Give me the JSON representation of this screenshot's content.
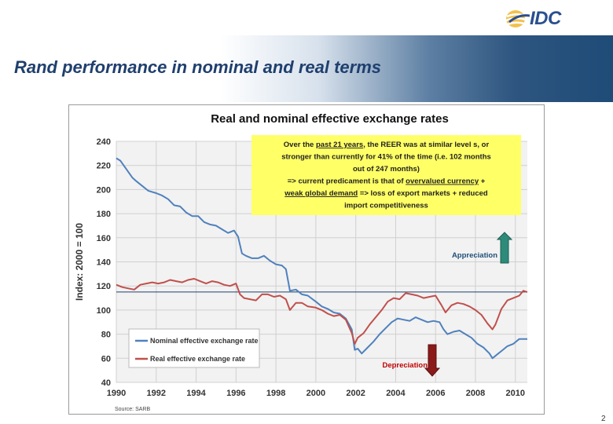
{
  "slide": {
    "title": "Rand performance in nominal and real terms",
    "page_number": "2",
    "logo_text": "IDC"
  },
  "chart_data": {
    "type": "line",
    "title": "Real and nominal effective exchange rates",
    "xlabel": "",
    "ylabel": "Index: 2000 = 100",
    "xlim": [
      1990,
      2010.6
    ],
    "ylim": [
      40,
      240
    ],
    "yticks": [
      40,
      60,
      80,
      100,
      120,
      140,
      160,
      180,
      200,
      220,
      240
    ],
    "xticks": [
      1990,
      1992,
      1994,
      1996,
      1998,
      2000,
      2002,
      2004,
      2006,
      2008,
      2010
    ],
    "grid": true,
    "reference_line": 115,
    "source": "Source: SARB",
    "legend_position": "bottom-left",
    "series": [
      {
        "name": "Nominal effective exchange rate",
        "color": "#4f81bd",
        "points": [
          [
            1990.0,
            226
          ],
          [
            1990.2,
            224
          ],
          [
            1990.5,
            217
          ],
          [
            1990.8,
            210
          ],
          [
            1991.0,
            207
          ],
          [
            1991.3,
            203
          ],
          [
            1991.6,
            199
          ],
          [
            1992.0,
            197
          ],
          [
            1992.3,
            195
          ],
          [
            1992.6,
            192
          ],
          [
            1992.9,
            187
          ],
          [
            1993.2,
            186
          ],
          [
            1993.5,
            181
          ],
          [
            1993.8,
            178
          ],
          [
            1994.1,
            178
          ],
          [
            1994.4,
            173
          ],
          [
            1994.7,
            171
          ],
          [
            1995.0,
            170
          ],
          [
            1995.3,
            167
          ],
          [
            1995.6,
            164
          ],
          [
            1995.9,
            166
          ],
          [
            1996.1,
            161
          ],
          [
            1996.3,
            147
          ],
          [
            1996.5,
            145
          ],
          [
            1996.8,
            143
          ],
          [
            1997.1,
            143
          ],
          [
            1997.4,
            145
          ],
          [
            1997.7,
            141
          ],
          [
            1998.0,
            138
          ],
          [
            1998.3,
            137
          ],
          [
            1998.5,
            134
          ],
          [
            1998.7,
            116
          ],
          [
            1999.0,
            117
          ],
          [
            1999.3,
            113
          ],
          [
            1999.6,
            112
          ],
          [
            2000.0,
            107
          ],
          [
            2000.3,
            103
          ],
          [
            2000.6,
            101
          ],
          [
            2000.9,
            98
          ],
          [
            2001.2,
            97
          ],
          [
            2001.5,
            93
          ],
          [
            2001.8,
            84
          ],
          [
            2001.95,
            67
          ],
          [
            2002.1,
            68
          ],
          [
            2002.3,
            64
          ],
          [
            2002.6,
            69
          ],
          [
            2002.9,
            74
          ],
          [
            2003.2,
            80
          ],
          [
            2003.5,
            85
          ],
          [
            2003.8,
            90
          ],
          [
            2004.1,
            93
          ],
          [
            2004.4,
            92
          ],
          [
            2004.7,
            91
          ],
          [
            2005.0,
            94
          ],
          [
            2005.3,
            92
          ],
          [
            2005.6,
            90
          ],
          [
            2005.9,
            91
          ],
          [
            2006.2,
            90
          ],
          [
            2006.4,
            84
          ],
          [
            2006.6,
            80
          ],
          [
            2006.9,
            82
          ],
          [
            2007.2,
            83
          ],
          [
            2007.5,
            80
          ],
          [
            2007.8,
            77
          ],
          [
            2008.1,
            72
          ],
          [
            2008.4,
            69
          ],
          [
            2008.7,
            64
          ],
          [
            2008.85,
            60
          ],
          [
            2009.0,
            62
          ],
          [
            2009.3,
            66
          ],
          [
            2009.6,
            70
          ],
          [
            2009.9,
            72
          ],
          [
            2010.2,
            76
          ],
          [
            2010.6,
            76
          ]
        ]
      },
      {
        "name": "Real effective exchange rate",
        "color": "#c0504d",
        "points": [
          [
            1990.0,
            121
          ],
          [
            1990.3,
            119
          ],
          [
            1990.6,
            118
          ],
          [
            1990.9,
            117
          ],
          [
            1991.2,
            121
          ],
          [
            1991.5,
            122
          ],
          [
            1991.8,
            123
          ],
          [
            1992.1,
            122
          ],
          [
            1992.4,
            123
          ],
          [
            1992.7,
            125
          ],
          [
            1993.0,
            124
          ],
          [
            1993.3,
            123
          ],
          [
            1993.6,
            125
          ],
          [
            1993.9,
            126
          ],
          [
            1994.2,
            124
          ],
          [
            1994.5,
            122
          ],
          [
            1994.8,
            124
          ],
          [
            1995.1,
            123
          ],
          [
            1995.4,
            121
          ],
          [
            1995.7,
            120
          ],
          [
            1996.0,
            122
          ],
          [
            1996.2,
            113
          ],
          [
            1996.4,
            110
          ],
          [
            1996.7,
            109
          ],
          [
            1997.0,
            108
          ],
          [
            1997.3,
            113
          ],
          [
            1997.6,
            113
          ],
          [
            1997.9,
            111
          ],
          [
            1998.2,
            112
          ],
          [
            1998.5,
            109
          ],
          [
            1998.7,
            100
          ],
          [
            1999.0,
            106
          ],
          [
            1999.3,
            106
          ],
          [
            1999.6,
            103
          ],
          [
            2000.0,
            102
          ],
          [
            2000.3,
            100
          ],
          [
            2000.6,
            97
          ],
          [
            2000.9,
            95
          ],
          [
            2001.2,
            96
          ],
          [
            2001.5,
            92
          ],
          [
            2001.8,
            81
          ],
          [
            2001.95,
            72
          ],
          [
            2002.1,
            77
          ],
          [
            2002.4,
            81
          ],
          [
            2002.7,
            88
          ],
          [
            2003.0,
            94
          ],
          [
            2003.3,
            100
          ],
          [
            2003.6,
            107
          ],
          [
            2003.9,
            110
          ],
          [
            2004.2,
            109
          ],
          [
            2004.5,
            114
          ],
          [
            2004.8,
            113
          ],
          [
            2005.1,
            112
          ],
          [
            2005.4,
            110
          ],
          [
            2005.7,
            111
          ],
          [
            2006.0,
            112
          ],
          [
            2006.3,
            104
          ],
          [
            2006.5,
            98
          ],
          [
            2006.8,
            104
          ],
          [
            2007.1,
            106
          ],
          [
            2007.4,
            105
          ],
          [
            2007.7,
            103
          ],
          [
            2008.0,
            100
          ],
          [
            2008.3,
            96
          ],
          [
            2008.6,
            89
          ],
          [
            2008.85,
            84
          ],
          [
            2009.0,
            88
          ],
          [
            2009.3,
            101
          ],
          [
            2009.6,
            108
          ],
          [
            2009.9,
            110
          ],
          [
            2010.2,
            112
          ],
          [
            2010.4,
            116
          ],
          [
            2010.6,
            115
          ]
        ]
      }
    ],
    "annotation": {
      "lines": [
        {
          "segments": [
            {
              "text": "Over the ",
              "u": false
            },
            {
              "text": "past  21 years",
              "u": true
            },
            {
              "text": ", the REER was at similar level s, or",
              "u": false
            }
          ]
        },
        {
          "segments": [
            {
              "text": "stronger than currently for 41% of the time (i.e. 102 months",
              "u": false
            }
          ]
        },
        {
          "segments": [
            {
              "text": "out of 247 months)",
              "u": false
            }
          ]
        },
        {
          "segments": [
            {
              "text": "=> current predicament  is that of ",
              "u": false
            },
            {
              "text": "overvalued currency",
              "u": true
            },
            {
              "text": " +",
              "u": false
            }
          ]
        },
        {
          "segments": [
            {
              "text": "weak global demand",
              "u": true
            },
            {
              "text": "  => loss of export markets + reduced",
              "u": false
            }
          ]
        },
        {
          "segments": [
            {
              "text": "import competitiveness",
              "u": false
            }
          ]
        }
      ],
      "background": "#ffff66"
    },
    "labels": {
      "appreciation": "Appreciation",
      "depreciation": "Depreciation"
    },
    "colors": {
      "appreciation_arrow": "#2e8b7a",
      "depreciation_arrow": "#8b1a1a",
      "depreciation_text": "#c00000",
      "appreciation_text": "#1f4e79"
    }
  }
}
